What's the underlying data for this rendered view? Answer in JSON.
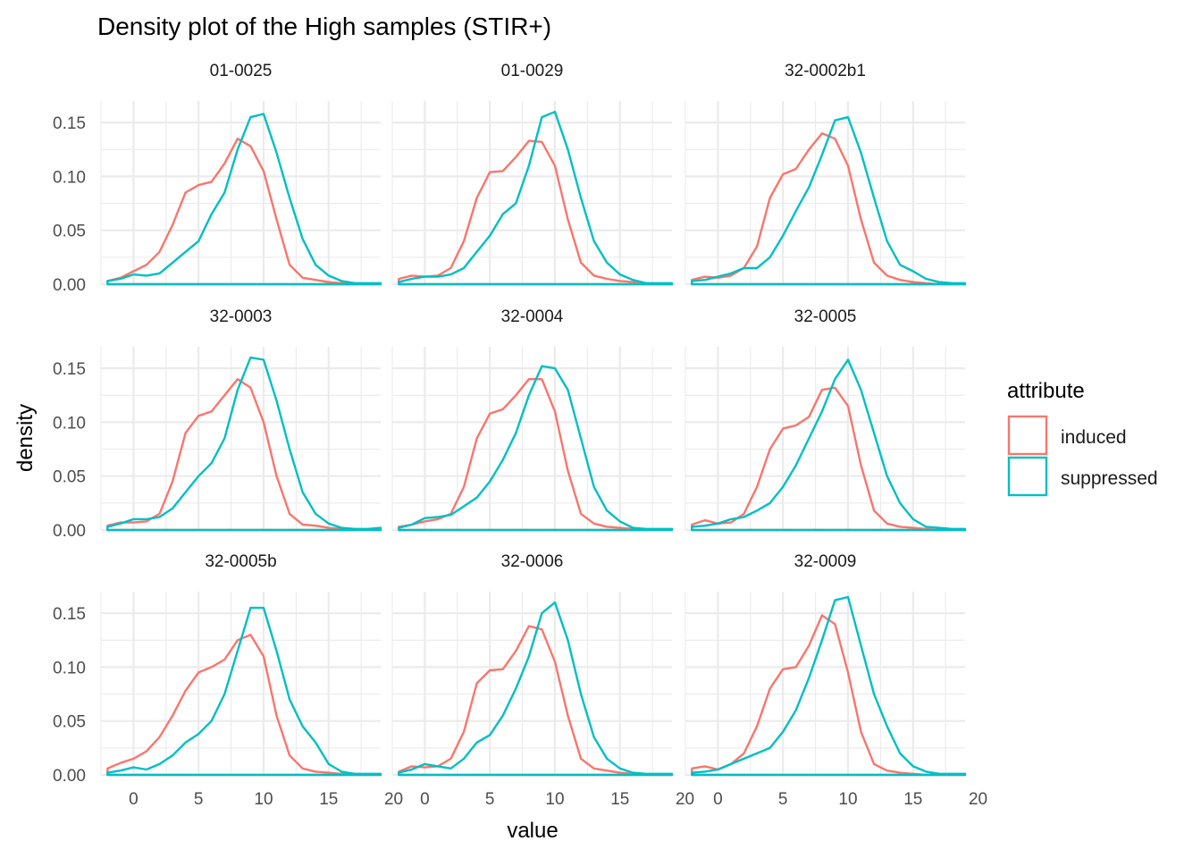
{
  "chart_data": {
    "type": "density",
    "title": "Density plot of the High samples (STIR+)",
    "xlabel": "value",
    "ylabel": "density",
    "xlim": [
      -2.5,
      19
    ],
    "ylim": [
      0,
      0.17
    ],
    "x_ticks": [
      0,
      5,
      10,
      15,
      20
    ],
    "y_ticks": [
      "0.00",
      "0.05",
      "0.10",
      "0.15"
    ],
    "grid": true,
    "legend": {
      "title": "attribute",
      "position": "right",
      "entries": [
        {
          "label": "induced",
          "color": "#F8766D"
        },
        {
          "label": "suppressed",
          "color": "#00BFC4"
        }
      ]
    },
    "facets": [
      {
        "label": "01-0025",
        "series": [
          {
            "name": "induced",
            "x": [
              -2,
              -1,
              0,
              1,
              2,
              3,
              4,
              5,
              6,
              7,
              8,
              9,
              10,
              11,
              12,
              13,
              14,
              15,
              16,
              17,
              18,
              19
            ],
            "y": [
              0.003,
              0.006,
              0.012,
              0.018,
              0.03,
              0.055,
              0.085,
              0.092,
              0.095,
              0.112,
              0.135,
              0.128,
              0.105,
              0.06,
              0.018,
              0.006,
              0.004,
              0.002,
              0.001,
              0.001,
              0,
              0
            ]
          },
          {
            "name": "suppressed",
            "x": [
              -2,
              -1,
              0,
              1,
              2,
              3,
              4,
              5,
              6,
              7,
              8,
              9,
              10,
              11,
              12,
              13,
              14,
              15,
              16,
              17,
              18,
              19
            ],
            "y": [
              0.003,
              0.005,
              0.009,
              0.008,
              0.01,
              0.02,
              0.03,
              0.04,
              0.065,
              0.085,
              0.125,
              0.155,
              0.158,
              0.122,
              0.08,
              0.042,
              0.018,
              0.008,
              0.003,
              0.001,
              0.001,
              0.001
            ]
          }
        ]
      },
      {
        "label": "01-0029",
        "series": [
          {
            "name": "induced",
            "x": [
              -2,
              -1,
              0,
              1,
              2,
              3,
              4,
              5,
              6,
              7,
              8,
              9,
              10,
              11,
              12,
              13,
              14,
              15,
              16,
              17,
              18,
              19
            ],
            "y": [
              0.005,
              0.008,
              0.007,
              0.008,
              0.015,
              0.04,
              0.08,
              0.104,
              0.105,
              0.118,
              0.133,
              0.132,
              0.11,
              0.06,
              0.02,
              0.008,
              0.005,
              0.003,
              0.002,
              0.001,
              0,
              0
            ]
          },
          {
            "name": "suppressed",
            "x": [
              -2,
              -1,
              0,
              1,
              2,
              3,
              4,
              5,
              6,
              7,
              8,
              9,
              10,
              11,
              12,
              13,
              14,
              15,
              16,
              17,
              18,
              19
            ],
            "y": [
              0.002,
              0.005,
              0.007,
              0.007,
              0.009,
              0.015,
              0.03,
              0.045,
              0.065,
              0.075,
              0.11,
              0.155,
              0.16,
              0.125,
              0.08,
              0.04,
              0.02,
              0.009,
              0.004,
              0.001,
              0.001,
              0.001
            ]
          }
        ]
      },
      {
        "label": "32-0002b1",
        "series": [
          {
            "name": "induced",
            "x": [
              -2,
              -1,
              0,
              1,
              2,
              3,
              4,
              5,
              6,
              7,
              8,
              9,
              10,
              11,
              12,
              13,
              14,
              15,
              16,
              17,
              18,
              19
            ],
            "y": [
              0.004,
              0.007,
              0.006,
              0.008,
              0.015,
              0.035,
              0.08,
              0.102,
              0.107,
              0.125,
              0.14,
              0.135,
              0.11,
              0.06,
              0.02,
              0.008,
              0.004,
              0.002,
              0.001,
              0,
              0,
              0
            ]
          },
          {
            "name": "suppressed",
            "x": [
              -2,
              -1,
              0,
              1,
              2,
              3,
              4,
              5,
              6,
              7,
              8,
              9,
              10,
              11,
              12,
              13,
              14,
              15,
              16,
              17,
              18,
              19
            ],
            "y": [
              0.003,
              0.004,
              0.007,
              0.01,
              0.015,
              0.015,
              0.025,
              0.045,
              0.068,
              0.09,
              0.12,
              0.152,
              0.155,
              0.122,
              0.08,
              0.04,
              0.018,
              0.012,
              0.005,
              0.002,
              0.001,
              0.001
            ]
          }
        ]
      },
      {
        "label": "32-0003",
        "series": [
          {
            "name": "induced",
            "x": [
              -2,
              -1,
              0,
              1,
              2,
              3,
              4,
              5,
              6,
              7,
              8,
              9,
              10,
              11,
              12,
              13,
              14,
              15,
              16,
              17,
              18,
              19
            ],
            "y": [
              0.004,
              0.007,
              0.007,
              0.008,
              0.015,
              0.045,
              0.09,
              0.106,
              0.11,
              0.125,
              0.14,
              0.132,
              0.1,
              0.05,
              0.015,
              0.005,
              0.004,
              0.002,
              0.001,
              0,
              0,
              0
            ]
          },
          {
            "name": "suppressed",
            "x": [
              -2,
              -1,
              0,
              1,
              2,
              3,
              4,
              5,
              6,
              7,
              8,
              9,
              10,
              11,
              12,
              13,
              14,
              15,
              16,
              17,
              18,
              19
            ],
            "y": [
              0.003,
              0.006,
              0.01,
              0.01,
              0.012,
              0.02,
              0.035,
              0.05,
              0.062,
              0.085,
              0.13,
              0.16,
              0.158,
              0.12,
              0.075,
              0.035,
              0.015,
              0.006,
              0.002,
              0.001,
              0.001,
              0.002
            ]
          }
        ]
      },
      {
        "label": "32-0004",
        "series": [
          {
            "name": "induced",
            "x": [
              -2,
              -1,
              0,
              1,
              2,
              3,
              4,
              5,
              6,
              7,
              8,
              9,
              10,
              11,
              12,
              13,
              14,
              15,
              16,
              17,
              18,
              19
            ],
            "y": [
              0.003,
              0.005,
              0.008,
              0.01,
              0.015,
              0.04,
              0.085,
              0.108,
              0.112,
              0.125,
              0.14,
              0.14,
              0.11,
              0.055,
              0.015,
              0.006,
              0.003,
              0.002,
              0.001,
              0,
              0,
              0
            ]
          },
          {
            "name": "suppressed",
            "x": [
              -2,
              -1,
              0,
              1,
              2,
              3,
              4,
              5,
              6,
              7,
              8,
              9,
              10,
              11,
              12,
              13,
              14,
              15,
              16,
              17,
              18,
              19
            ],
            "y": [
              0.002,
              0.005,
              0.011,
              0.012,
              0.014,
              0.022,
              0.03,
              0.045,
              0.065,
              0.09,
              0.125,
              0.152,
              0.15,
              0.13,
              0.085,
              0.04,
              0.018,
              0.008,
              0.002,
              0.001,
              0.001,
              0.001
            ]
          }
        ]
      },
      {
        "label": "32-0005",
        "series": [
          {
            "name": "induced",
            "x": [
              -2,
              -1,
              0,
              1,
              2,
              3,
              4,
              5,
              6,
              7,
              8,
              9,
              10,
              11,
              12,
              13,
              14,
              15,
              16,
              17,
              18,
              19
            ],
            "y": [
              0.005,
              0.009,
              0.006,
              0.007,
              0.015,
              0.04,
              0.075,
              0.094,
              0.097,
              0.105,
              0.13,
              0.132,
              0.115,
              0.06,
              0.018,
              0.006,
              0.003,
              0.002,
              0.001,
              0,
              0,
              0
            ]
          },
          {
            "name": "suppressed",
            "x": [
              -2,
              -1,
              0,
              1,
              2,
              3,
              4,
              5,
              6,
              7,
              8,
              9,
              10,
              11,
              12,
              13,
              14,
              15,
              16,
              17,
              18,
              19
            ],
            "y": [
              0.003,
              0.004,
              0.006,
              0.01,
              0.012,
              0.018,
              0.025,
              0.04,
              0.06,
              0.085,
              0.11,
              0.14,
              0.158,
              0.13,
              0.09,
              0.05,
              0.025,
              0.01,
              0.003,
              0.002,
              0.001,
              0.001
            ]
          }
        ]
      },
      {
        "label": "32-0005b",
        "series": [
          {
            "name": "induced",
            "x": [
              -2,
              -1,
              0,
              1,
              2,
              3,
              4,
              5,
              6,
              7,
              8,
              9,
              10,
              11,
              12,
              13,
              14,
              15,
              16,
              17,
              18,
              19
            ],
            "y": [
              0.006,
              0.011,
              0.015,
              0.022,
              0.035,
              0.055,
              0.078,
              0.095,
              0.1,
              0.107,
              0.125,
              0.13,
              0.11,
              0.055,
              0.018,
              0.006,
              0.003,
              0.002,
              0.001,
              0,
              0,
              0
            ]
          },
          {
            "name": "suppressed",
            "x": [
              -2,
              -1,
              0,
              1,
              2,
              3,
              4,
              5,
              6,
              7,
              8,
              9,
              10,
              11,
              12,
              13,
              14,
              15,
              16,
              17,
              18,
              19
            ],
            "y": [
              0.002,
              0.004,
              0.007,
              0.005,
              0.01,
              0.018,
              0.03,
              0.038,
              0.05,
              0.075,
              0.115,
              0.155,
              0.155,
              0.115,
              0.07,
              0.045,
              0.03,
              0.01,
              0.003,
              0.001,
              0.001,
              0.001
            ]
          }
        ]
      },
      {
        "label": "32-0006",
        "series": [
          {
            "name": "induced",
            "x": [
              -2,
              -1,
              0,
              1,
              2,
              3,
              4,
              5,
              6,
              7,
              8,
              9,
              10,
              11,
              12,
              13,
              14,
              15,
              16,
              17,
              18,
              19
            ],
            "y": [
              0.003,
              0.008,
              0.007,
              0.008,
              0.015,
              0.04,
              0.085,
              0.097,
              0.098,
              0.115,
              0.138,
              0.135,
              0.105,
              0.055,
              0.015,
              0.006,
              0.004,
              0.002,
              0.001,
              0,
              0,
              0
            ]
          },
          {
            "name": "suppressed",
            "x": [
              -2,
              -1,
              0,
              1,
              2,
              3,
              4,
              5,
              6,
              7,
              8,
              9,
              10,
              11,
              12,
              13,
              14,
              15,
              16,
              17,
              18,
              19
            ],
            "y": [
              0.002,
              0.005,
              0.01,
              0.008,
              0.006,
              0.015,
              0.03,
              0.037,
              0.055,
              0.08,
              0.11,
              0.15,
              0.16,
              0.125,
              0.075,
              0.035,
              0.015,
              0.006,
              0.002,
              0.001,
              0.001,
              0.001
            ]
          }
        ]
      },
      {
        "label": "32-0009",
        "series": [
          {
            "name": "induced",
            "x": [
              -2,
              -1,
              0,
              1,
              2,
              3,
              4,
              5,
              6,
              7,
              8,
              9,
              10,
              11,
              12,
              13,
              14,
              15,
              16,
              17,
              18,
              19
            ],
            "y": [
              0.006,
              0.008,
              0.005,
              0.01,
              0.02,
              0.045,
              0.08,
              0.098,
              0.1,
              0.12,
              0.148,
              0.14,
              0.095,
              0.04,
              0.01,
              0.004,
              0.002,
              0.001,
              0,
              0,
              0,
              0
            ]
          },
          {
            "name": "suppressed",
            "x": [
              -2,
              -1,
              0,
              1,
              2,
              3,
              4,
              5,
              6,
              7,
              8,
              9,
              10,
              11,
              12,
              13,
              14,
              15,
              16,
              17,
              18,
              19
            ],
            "y": [
              0.002,
              0.003,
              0.005,
              0.01,
              0.015,
              0.02,
              0.025,
              0.04,
              0.06,
              0.09,
              0.125,
              0.162,
              0.165,
              0.12,
              0.075,
              0.045,
              0.02,
              0.008,
              0.003,
              0.001,
              0.001,
              0.001
            ]
          }
        ]
      }
    ]
  }
}
